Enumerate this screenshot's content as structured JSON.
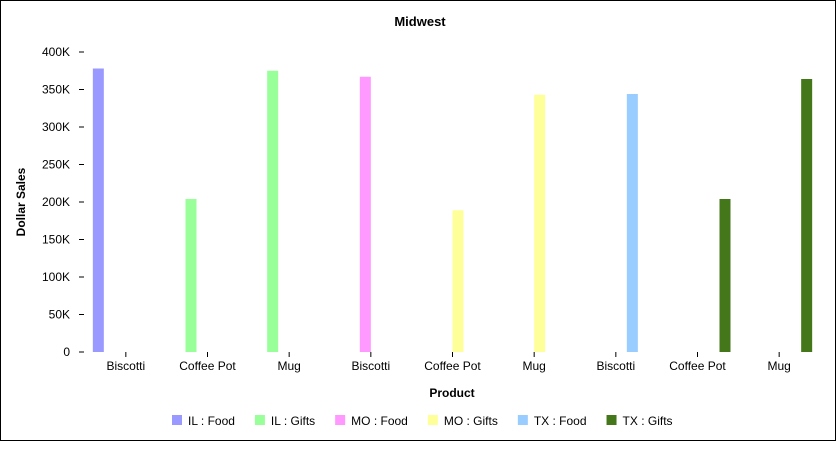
{
  "chart_data": {
    "type": "bar",
    "title": "Midwest",
    "xlabel": "Product",
    "ylabel": "Dollar Sales",
    "ylim": [
      0,
      400000
    ],
    "yticks": [
      0,
      50000,
      100000,
      150000,
      200000,
      250000,
      300000,
      350000,
      400000
    ],
    "ytick_labels": [
      "0",
      "50K",
      "100K",
      "150K",
      "200K",
      "250K",
      "300K",
      "350K",
      "400K"
    ],
    "categories": [
      "Biscotti",
      "Coffee Pot",
      "Mug",
      "Biscotti",
      "Coffee Pot",
      "Mug",
      "Biscotti",
      "Coffee Pot",
      "Mug"
    ],
    "grid": false,
    "legend_position": "bottom",
    "series": [
      {
        "name": "IL : Food",
        "color": "#9999ff",
        "values": [
          378000,
          null,
          null,
          null,
          null,
          null,
          null,
          null,
          null
        ]
      },
      {
        "name": "IL : Gifts",
        "color": "#99ff99",
        "values": [
          null,
          204000,
          375000,
          null,
          null,
          null,
          null,
          null,
          null
        ]
      },
      {
        "name": "MO : Food",
        "color": "#ff99ff",
        "values": [
          null,
          null,
          null,
          367000,
          null,
          null,
          null,
          null,
          null
        ]
      },
      {
        "name": "MO : Gifts",
        "color": "#ffff99",
        "values": [
          null,
          null,
          null,
          null,
          189000,
          343000,
          null,
          null,
          null
        ]
      },
      {
        "name": "TX : Food",
        "color": "#99ccff",
        "values": [
          null,
          null,
          null,
          null,
          null,
          null,
          344000,
          null,
          null
        ]
      },
      {
        "name": "TX : Gifts",
        "color": "#44771a",
        "values": [
          null,
          null,
          null,
          null,
          null,
          null,
          null,
          204000,
          364000
        ]
      }
    ]
  }
}
